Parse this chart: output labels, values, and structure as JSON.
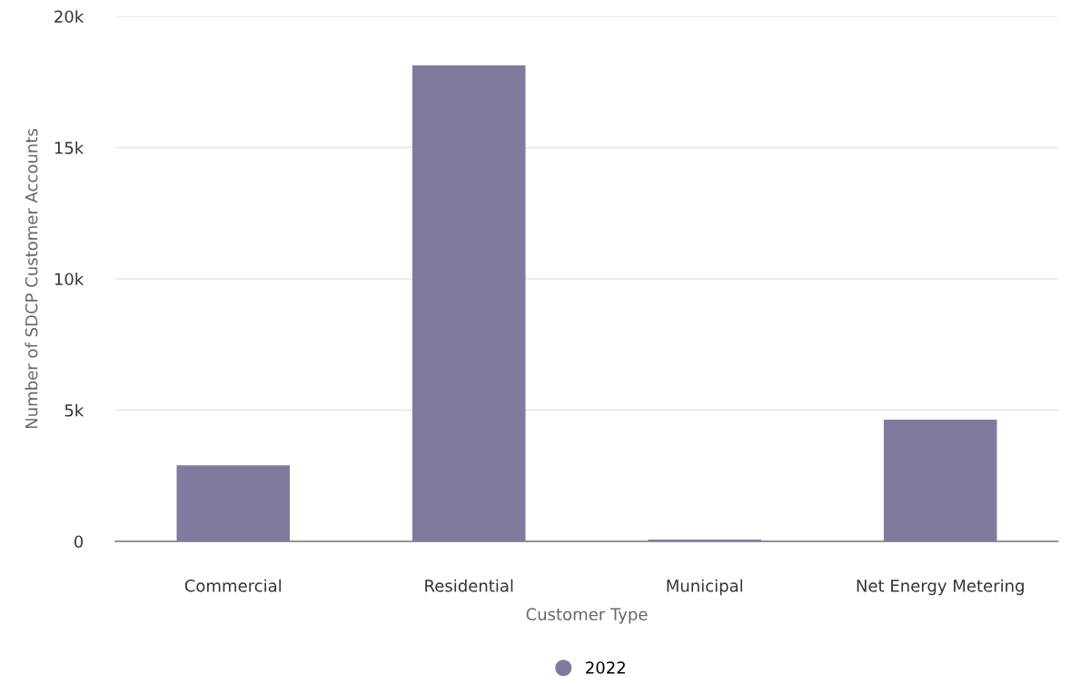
{
  "chart_data": {
    "type": "bar",
    "xlabel": "Customer Type",
    "ylabel": "Number of SDCP Customer Accounts",
    "categories": [
      "Commercial",
      "Residential",
      "Municipal",
      "Net Energy Metering"
    ],
    "series": [
      {
        "name": "2022",
        "color": "#807b9e",
        "values": [
          2900,
          18130,
          70,
          4640
        ]
      }
    ],
    "ylim": [
      0,
      20000
    ],
    "yticks": [
      0,
      {
        "value": 5000,
        "label": "5k"
      },
      {
        "value": 10000,
        "label": "10k"
      },
      {
        "value": 15000,
        "label": "15k"
      },
      {
        "value": 20000,
        "label": "20k"
      }
    ],
    "grid": "y",
    "legend": "bottom",
    "marker": "circle"
  }
}
